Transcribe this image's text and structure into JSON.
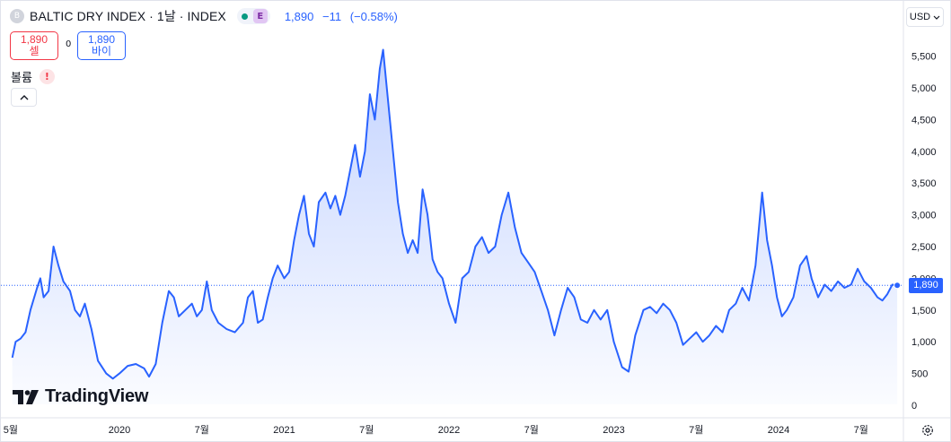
{
  "header": {
    "symbol_initial": "B",
    "symbol_title": "BALTIC DRY INDEX · 1날 · INDEX",
    "market_badge": "E",
    "last_price": "1,890",
    "change": "−11",
    "change_percent": "(−0.58%)",
    "status_color": "#089981"
  },
  "trade": {
    "sell_price": "1,890",
    "sell_label": "셀",
    "spread": "0",
    "buy_price": "1,890",
    "buy_label": "바이"
  },
  "volume": {
    "label": "볼륨",
    "warning_icon": "!"
  },
  "currency": {
    "label": "USD"
  },
  "logo": {
    "text": "TradingView"
  },
  "price_tag": "1,890",
  "icons": [
    "chevron-up-icon",
    "chevron-down-icon",
    "warning-icon",
    "tradingview-logo-icon",
    "settings-icon"
  ],
  "colors": {
    "line": "#2962ff",
    "sell": "#f23645",
    "buy": "#2962ff",
    "price_tag": "#2962ff"
  },
  "chart_data": {
    "type": "area",
    "series": [
      {
        "values": [
          {
            "x": 2019.35,
            "y": 750
          },
          {
            "x": 2019.37,
            "y": 1000
          },
          {
            "x": 2019.4,
            "y": 1050
          },
          {
            "x": 2019.43,
            "y": 1150
          },
          {
            "x": 2019.46,
            "y": 1500
          },
          {
            "x": 2019.5,
            "y": 1850
          },
          {
            "x": 2019.52,
            "y": 2000
          },
          {
            "x": 2019.54,
            "y": 1700
          },
          {
            "x": 2019.57,
            "y": 1800
          },
          {
            "x": 2019.6,
            "y": 2500
          },
          {
            "x": 2019.63,
            "y": 2200
          },
          {
            "x": 2019.66,
            "y": 1950
          },
          {
            "x": 2019.7,
            "y": 1800
          },
          {
            "x": 2019.73,
            "y": 1500
          },
          {
            "x": 2019.76,
            "y": 1400
          },
          {
            "x": 2019.79,
            "y": 1600
          },
          {
            "x": 2019.83,
            "y": 1200
          },
          {
            "x": 2019.87,
            "y": 700
          },
          {
            "x": 2019.92,
            "y": 500
          },
          {
            "x": 2019.96,
            "y": 420
          },
          {
            "x": 2020.0,
            "y": 500
          },
          {
            "x": 2020.05,
            "y": 620
          },
          {
            "x": 2020.1,
            "y": 650
          },
          {
            "x": 2020.15,
            "y": 580
          },
          {
            "x": 2020.18,
            "y": 450
          },
          {
            "x": 2020.22,
            "y": 650
          },
          {
            "x": 2020.26,
            "y": 1300
          },
          {
            "x": 2020.3,
            "y": 1800
          },
          {
            "x": 2020.33,
            "y": 1700
          },
          {
            "x": 2020.36,
            "y": 1400
          },
          {
            "x": 2020.4,
            "y": 1500
          },
          {
            "x": 2020.44,
            "y": 1600
          },
          {
            "x": 2020.47,
            "y": 1400
          },
          {
            "x": 2020.5,
            "y": 1500
          },
          {
            "x": 2020.53,
            "y": 1950
          },
          {
            "x": 2020.56,
            "y": 1500
          },
          {
            "x": 2020.6,
            "y": 1300
          },
          {
            "x": 2020.65,
            "y": 1200
          },
          {
            "x": 2020.7,
            "y": 1150
          },
          {
            "x": 2020.75,
            "y": 1300
          },
          {
            "x": 2020.78,
            "y": 1700
          },
          {
            "x": 2020.81,
            "y": 1800
          },
          {
            "x": 2020.84,
            "y": 1300
          },
          {
            "x": 2020.87,
            "y": 1350
          },
          {
            "x": 2020.9,
            "y": 1700
          },
          {
            "x": 2020.93,
            "y": 2000
          },
          {
            "x": 2020.96,
            "y": 2200
          },
          {
            "x": 2021.0,
            "y": 2000
          },
          {
            "x": 2021.03,
            "y": 2100
          },
          {
            "x": 2021.06,
            "y": 2600
          },
          {
            "x": 2021.09,
            "y": 3000
          },
          {
            "x": 2021.12,
            "y": 3300
          },
          {
            "x": 2021.15,
            "y": 2700
          },
          {
            "x": 2021.18,
            "y": 2500
          },
          {
            "x": 2021.21,
            "y": 3200
          },
          {
            "x": 2021.25,
            "y": 3350
          },
          {
            "x": 2021.28,
            "y": 3100
          },
          {
            "x": 2021.31,
            "y": 3300
          },
          {
            "x": 2021.34,
            "y": 3000
          },
          {
            "x": 2021.37,
            "y": 3300
          },
          {
            "x": 2021.4,
            "y": 3700
          },
          {
            "x": 2021.43,
            "y": 4100
          },
          {
            "x": 2021.46,
            "y": 3600
          },
          {
            "x": 2021.49,
            "y": 4000
          },
          {
            "x": 2021.52,
            "y": 4900
          },
          {
            "x": 2021.55,
            "y": 4500
          },
          {
            "x": 2021.58,
            "y": 5300
          },
          {
            "x": 2021.6,
            "y": 5600
          },
          {
            "x": 2021.63,
            "y": 4800
          },
          {
            "x": 2021.66,
            "y": 4000
          },
          {
            "x": 2021.69,
            "y": 3200
          },
          {
            "x": 2021.72,
            "y": 2700
          },
          {
            "x": 2021.75,
            "y": 2400
          },
          {
            "x": 2021.78,
            "y": 2600
          },
          {
            "x": 2021.81,
            "y": 2400
          },
          {
            "x": 2021.84,
            "y": 3400
          },
          {
            "x": 2021.87,
            "y": 3000
          },
          {
            "x": 2021.9,
            "y": 2300
          },
          {
            "x": 2021.93,
            "y": 2100
          },
          {
            "x": 2021.96,
            "y": 2000
          },
          {
            "x": 2022.0,
            "y": 1600
          },
          {
            "x": 2022.04,
            "y": 1300
          },
          {
            "x": 2022.08,
            "y": 2000
          },
          {
            "x": 2022.12,
            "y": 2100
          },
          {
            "x": 2022.16,
            "y": 2500
          },
          {
            "x": 2022.2,
            "y": 2650
          },
          {
            "x": 2022.24,
            "y": 2400
          },
          {
            "x": 2022.28,
            "y": 2500
          },
          {
            "x": 2022.32,
            "y": 3000
          },
          {
            "x": 2022.36,
            "y": 3350
          },
          {
            "x": 2022.4,
            "y": 2800
          },
          {
            "x": 2022.44,
            "y": 2400
          },
          {
            "x": 2022.48,
            "y": 2250
          },
          {
            "x": 2022.52,
            "y": 2100
          },
          {
            "x": 2022.56,
            "y": 1800
          },
          {
            "x": 2022.6,
            "y": 1500
          },
          {
            "x": 2022.64,
            "y": 1100
          },
          {
            "x": 2022.68,
            "y": 1500
          },
          {
            "x": 2022.72,
            "y": 1850
          },
          {
            "x": 2022.76,
            "y": 1700
          },
          {
            "x": 2022.8,
            "y": 1350
          },
          {
            "x": 2022.84,
            "y": 1300
          },
          {
            "x": 2022.88,
            "y": 1500
          },
          {
            "x": 2022.92,
            "y": 1350
          },
          {
            "x": 2022.96,
            "y": 1500
          },
          {
            "x": 2023.0,
            "y": 1000
          },
          {
            "x": 2023.05,
            "y": 600
          },
          {
            "x": 2023.09,
            "y": 530
          },
          {
            "x": 2023.13,
            "y": 1100
          },
          {
            "x": 2023.18,
            "y": 1500
          },
          {
            "x": 2023.22,
            "y": 1550
          },
          {
            "x": 2023.26,
            "y": 1450
          },
          {
            "x": 2023.3,
            "y": 1600
          },
          {
            "x": 2023.34,
            "y": 1500
          },
          {
            "x": 2023.38,
            "y": 1300
          },
          {
            "x": 2023.42,
            "y": 950
          },
          {
            "x": 2023.46,
            "y": 1050
          },
          {
            "x": 2023.5,
            "y": 1150
          },
          {
            "x": 2023.54,
            "y": 1000
          },
          {
            "x": 2023.58,
            "y": 1100
          },
          {
            "x": 2023.62,
            "y": 1250
          },
          {
            "x": 2023.66,
            "y": 1150
          },
          {
            "x": 2023.7,
            "y": 1500
          },
          {
            "x": 2023.74,
            "y": 1600
          },
          {
            "x": 2023.78,
            "y": 1850
          },
          {
            "x": 2023.82,
            "y": 1650
          },
          {
            "x": 2023.86,
            "y": 2200
          },
          {
            "x": 2023.9,
            "y": 3350
          },
          {
            "x": 2023.93,
            "y": 2600
          },
          {
            "x": 2023.96,
            "y": 2200
          },
          {
            "x": 2023.99,
            "y": 1700
          },
          {
            "x": 2024.02,
            "y": 1400
          },
          {
            "x": 2024.05,
            "y": 1500
          },
          {
            "x": 2024.09,
            "y": 1700
          },
          {
            "x": 2024.13,
            "y": 2200
          },
          {
            "x": 2024.17,
            "y": 2350
          },
          {
            "x": 2024.2,
            "y": 2000
          },
          {
            "x": 2024.24,
            "y": 1700
          },
          {
            "x": 2024.28,
            "y": 1900
          },
          {
            "x": 2024.32,
            "y": 1800
          },
          {
            "x": 2024.36,
            "y": 1950
          },
          {
            "x": 2024.4,
            "y": 1850
          },
          {
            "x": 2024.44,
            "y": 1900
          },
          {
            "x": 2024.48,
            "y": 2150
          },
          {
            "x": 2024.52,
            "y": 1950
          },
          {
            "x": 2024.56,
            "y": 1850
          },
          {
            "x": 2024.6,
            "y": 1700
          },
          {
            "x": 2024.63,
            "y": 1650
          },
          {
            "x": 2024.66,
            "y": 1750
          },
          {
            "x": 2024.69,
            "y": 1900
          },
          {
            "x": 2024.72,
            "y": 1890
          }
        ]
      }
    ],
    "xticks": [
      {
        "label": "5월",
        "x": 2019.34
      },
      {
        "label": "2020",
        "x": 2020.0
      },
      {
        "label": "7월",
        "x": 2020.5
      },
      {
        "label": "2021",
        "x": 2021.0
      },
      {
        "label": "7월",
        "x": 2021.5
      },
      {
        "label": "2022",
        "x": 2022.0
      },
      {
        "label": "7월",
        "x": 2022.5
      },
      {
        "label": "2023",
        "x": 2023.0
      },
      {
        "label": "7월",
        "x": 2023.5
      },
      {
        "label": "2024",
        "x": 2024.0
      },
      {
        "label": "7월",
        "x": 2024.5
      }
    ],
    "yticks": [
      "0",
      "500",
      "1,000",
      "1,500",
      "2,000",
      "2,500",
      "3,000",
      "3,500",
      "4,000",
      "4,500",
      "5,000",
      "5,500"
    ],
    "ylim": [
      0,
      5800
    ],
    "xlim": [
      2019.34,
      2024.82
    ],
    "last_value": 1890,
    "grid": false,
    "legend": "none"
  }
}
